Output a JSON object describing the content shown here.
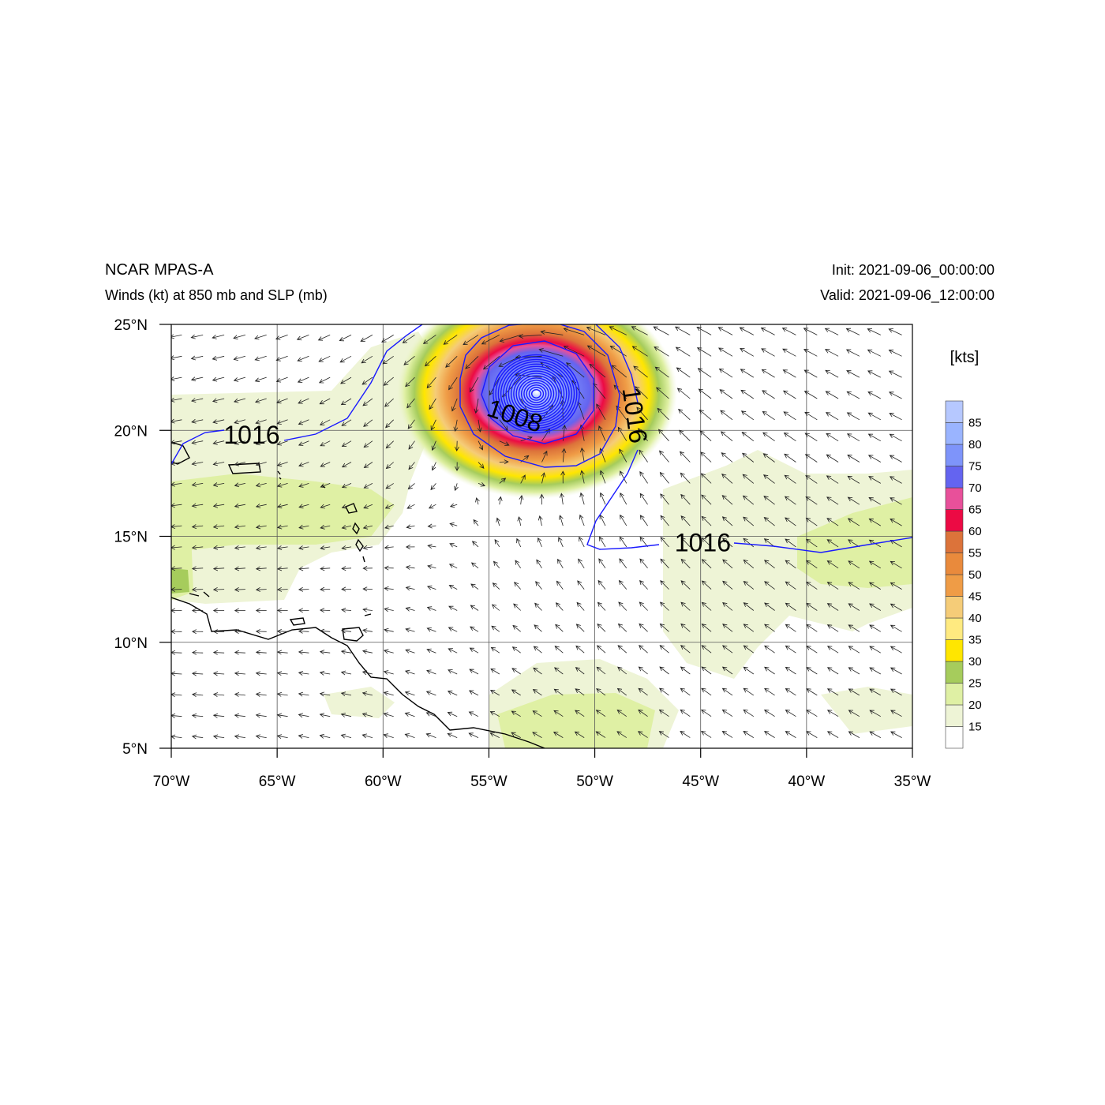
{
  "header": {
    "model": "NCAR MPAS-A",
    "field": "Winds (kt) at 850 mb and SLP (mb)",
    "init": "Init: 2021-09-06_00:00:00",
    "valid": "Valid: 2021-09-06_12:00:00"
  },
  "map": {
    "lon_range": [
      -70,
      -35
    ],
    "lat_range": [
      5,
      25
    ],
    "lon_ticks": [
      -70,
      -65,
      -60,
      -55,
      -50,
      -45,
      -40,
      -35
    ],
    "lat_ticks": [
      5,
      10,
      15,
      20,
      25
    ],
    "lon_tick_labels": [
      "70°W",
      "65°W",
      "60°W",
      "55°W",
      "50°W",
      "45°W",
      "40°W",
      "35°W"
    ],
    "lat_tick_labels": [
      "5°N",
      "10°N",
      "15°N",
      "20°N",
      "25°N"
    ],
    "grid": true,
    "storm_center": {
      "lon": -52.8,
      "lat": 21.8
    },
    "contour_color": "#1a1aff",
    "isobar_labels": [
      {
        "text": "1016",
        "lon": -66.2,
        "lat": 19.7
      },
      {
        "text": "1008",
        "lon": -53.8,
        "lat": 20.6
      },
      {
        "text": "1016",
        "lon": -48.2,
        "lat": 20.7
      },
      {
        "text": "1016",
        "lon": -44.9,
        "lat": 14.6
      }
    ]
  },
  "colorbar": {
    "units": "[kts]",
    "labels": [
      "15",
      "20",
      "25",
      "30",
      "35",
      "40",
      "45",
      "50",
      "55",
      "60",
      "65",
      "70",
      "75",
      "80",
      "85"
    ],
    "colors": [
      "#ffffff",
      "#eef4d6",
      "#dff0a4",
      "#a6cc5c",
      "#ffe600",
      "#ffea80",
      "#f5cc78",
      "#ef9c46",
      "#e98a3c",
      "#dc733a",
      "#ec0a44",
      "#e8509a",
      "#6464f0",
      "#7e94fa",
      "#9ab4ff",
      "#b6c8ff"
    ]
  }
}
